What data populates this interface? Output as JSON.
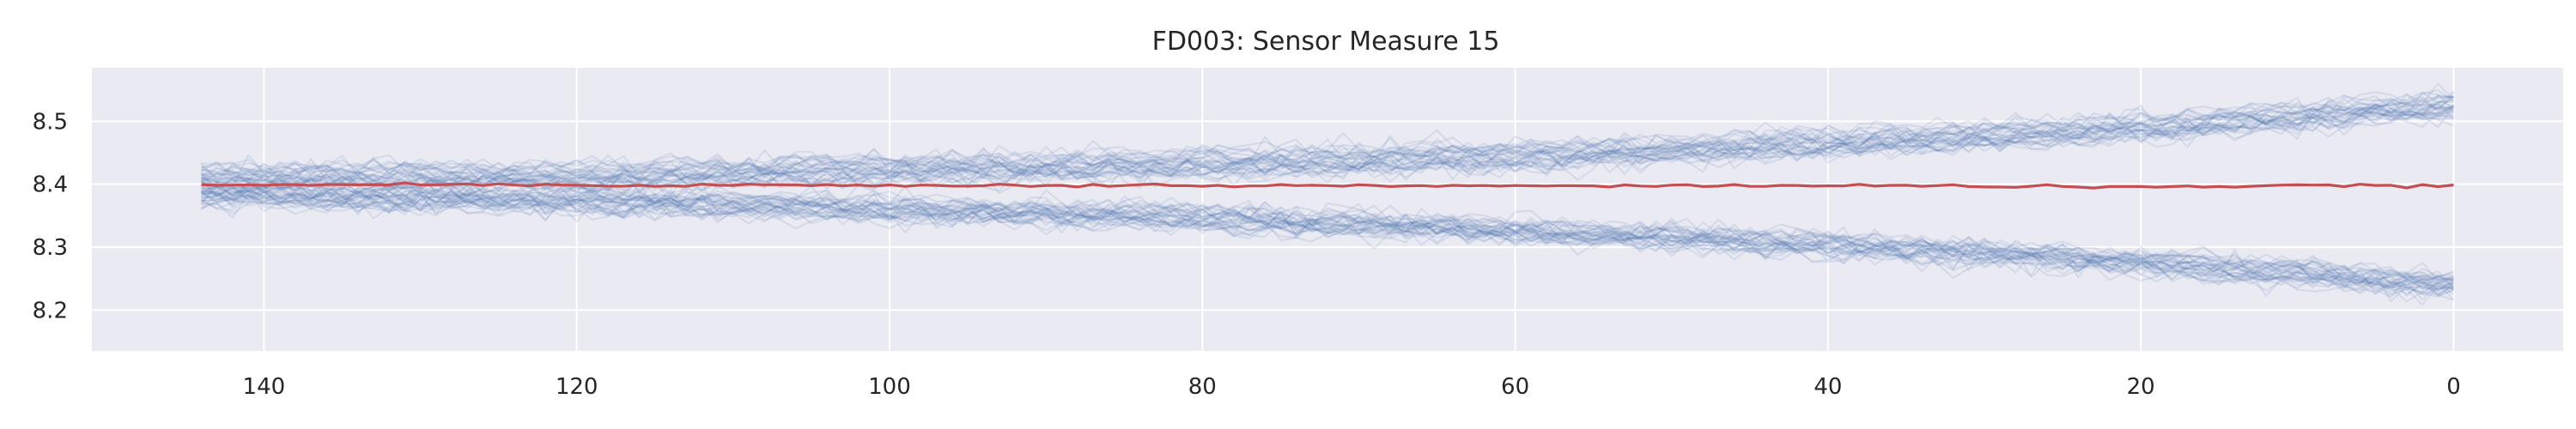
{
  "chart_data": {
    "type": "line",
    "title": "FD003: Sensor Measure 15",
    "xlabel": "",
    "ylabel": "",
    "xlim": [
      151,
      -7
    ],
    "ylim": [
      8.135,
      8.585
    ],
    "x_inverted": true,
    "grid": true,
    "legend": "none",
    "xticks": [
      140,
      120,
      100,
      80,
      60,
      40,
      20,
      0
    ],
    "xtick_labels": [
      "140",
      "120",
      "100",
      "80",
      "60",
      "40",
      "20",
      "0"
    ],
    "yticks": [
      8.2,
      8.3,
      8.4,
      8.5
    ],
    "ytick_labels": [
      "8.2",
      "8.3",
      "8.4",
      "8.5"
    ],
    "x_range": [
      144,
      0
    ],
    "x_description": "cycles remaining until failure",
    "colors": {
      "background": "#EAEAF2",
      "grid": "#FFFFFF",
      "unit_lines": "#4C72B0",
      "mean_line": "#C44E52"
    },
    "series": [
      {
        "kind": "band",
        "description": "upper cluster of per-unit traces (rising)",
        "x": [
          144,
          140,
          120,
          100,
          80,
          60,
          40,
          20,
          0
        ],
        "values": [
          8.41,
          8.412,
          8.413,
          8.424,
          8.432,
          8.445,
          8.465,
          8.49,
          8.525
        ],
        "spread": 0.03,
        "count": 35
      },
      {
        "kind": "band",
        "description": "lower cluster of per-unit traces (falling)",
        "x": [
          144,
          140,
          120,
          100,
          80,
          60,
          40,
          20,
          0
        ],
        "values": [
          8.385,
          8.38,
          8.372,
          8.36,
          8.345,
          8.325,
          8.303,
          8.275,
          8.238
        ],
        "spread": 0.03,
        "count": 35
      },
      {
        "kind": "mean",
        "description": "average across units",
        "x": [
          144,
          120,
          100,
          80,
          60,
          40,
          20,
          0
        ],
        "values": [
          8.4,
          8.399,
          8.398,
          8.398,
          8.397,
          8.398,
          8.396,
          8.398
        ]
      }
    ]
  }
}
